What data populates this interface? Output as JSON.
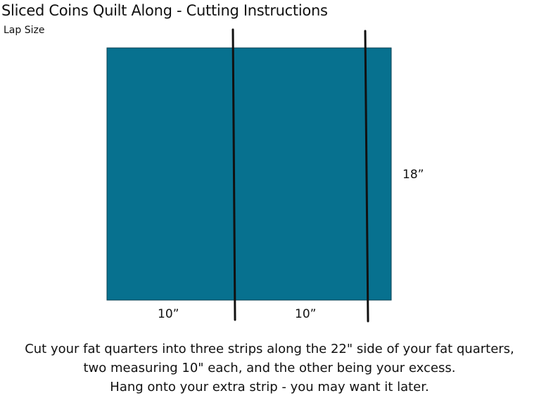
{
  "title": "Sliced Coins Quilt Along - Cutting Instructions",
  "subtitle": "Lap Size",
  "diagram": {
    "fabric_color": "#07718f",
    "cut_line_color": "#111111",
    "dimensions": {
      "height_label": "18”",
      "left_strip_label": "10”",
      "middle_strip_label": "10”"
    }
  },
  "instructions": {
    "line1": "Cut your fat quarters into three strips along the 22\" side of your fat quarters,",
    "line2": "two measuring 10\" each, and the other being your excess.",
    "line3": "Hang onto your extra strip - you may want it later."
  }
}
